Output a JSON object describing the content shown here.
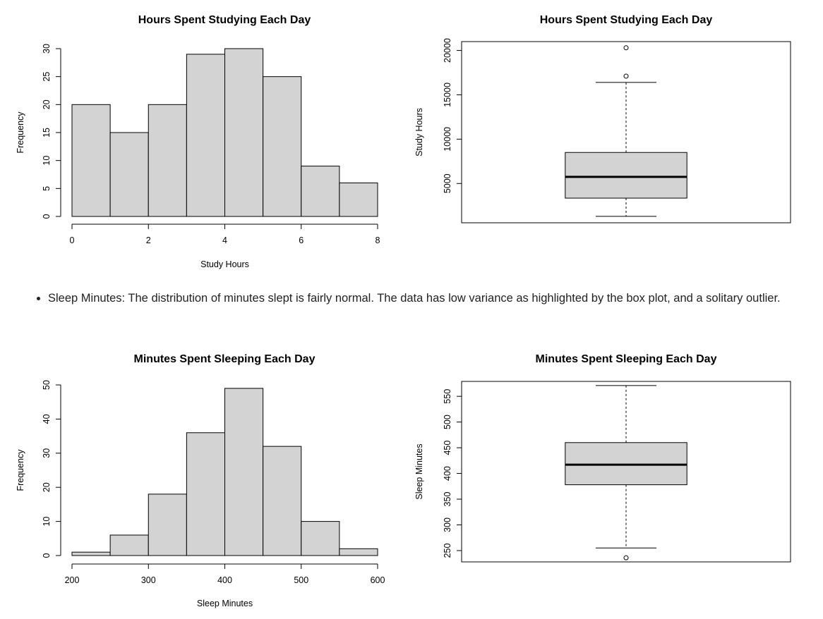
{
  "bullet": {
    "text": "Sleep Minutes: The distribution of minutes slept is fairly normal. The data has low variance as highlighted by the box plot, and a solitary outlier."
  },
  "chart_data": [
    {
      "type": "histogram",
      "title": "Hours Spent Studying Each Day",
      "xlabel": "Study Hours",
      "ylabel": "Frequency",
      "bins": [
        [
          0,
          1
        ],
        [
          1,
          2
        ],
        [
          2,
          3
        ],
        [
          3,
          4
        ],
        [
          4,
          5
        ],
        [
          5,
          6
        ],
        [
          6,
          7
        ],
        [
          7,
          8
        ]
      ],
      "values": [
        20,
        15,
        20,
        29,
        30,
        25,
        9,
        6
      ],
      "xlim": [
        0,
        8
      ],
      "ylim": [
        0,
        30
      ],
      "xticks": [
        0,
        2,
        4,
        6,
        8
      ],
      "yticks": [
        0,
        5,
        10,
        15,
        20,
        25,
        30
      ],
      "grid": false,
      "colors": {
        "bar": "#d3d3d3",
        "edge": "#000000"
      }
    },
    {
      "type": "box",
      "title": "Hours Spent Studying Each Day",
      "ylabel": "Study Hours",
      "whisker_low": 1300,
      "q1": 3350,
      "median": 5750,
      "q3": 8500,
      "whisker_high": 16400,
      "outliers": [
        17100,
        20300
      ],
      "ylim": [
        570,
        21000
      ],
      "yticks": [
        5000,
        10000,
        15000,
        20000
      ],
      "grid": false
    },
    {
      "type": "histogram",
      "title": "Minutes Spent Sleeping Each Day",
      "xlabel": "Sleep Minutes",
      "ylabel": "Frequency",
      "bins": [
        [
          200,
          250
        ],
        [
          250,
          300
        ],
        [
          300,
          350
        ],
        [
          350,
          400
        ],
        [
          400,
          450
        ],
        [
          450,
          500
        ],
        [
          500,
          550
        ],
        [
          550,
          600
        ]
      ],
      "values": [
        1,
        6,
        18,
        36,
        49,
        32,
        10,
        2
      ],
      "xlim": [
        200,
        600
      ],
      "ylim": [
        0,
        50
      ],
      "xticks": [
        200,
        300,
        400,
        500,
        600
      ],
      "yticks": [
        0,
        10,
        20,
        30,
        40,
        50
      ],
      "grid": false,
      "colors": {
        "bar": "#d3d3d3",
        "edge": "#000000"
      }
    },
    {
      "type": "box",
      "title": "Minutes Spent Sleeping Each Day",
      "ylabel": "Sleep Minutes",
      "whisker_low": 255,
      "q1": 378,
      "median": 417,
      "q3": 460,
      "whisker_high": 571,
      "outliers": [
        236
      ],
      "ylim": [
        228,
        579
      ],
      "yticks": [
        250,
        300,
        350,
        400,
        450,
        500,
        550
      ],
      "grid": false
    }
  ]
}
